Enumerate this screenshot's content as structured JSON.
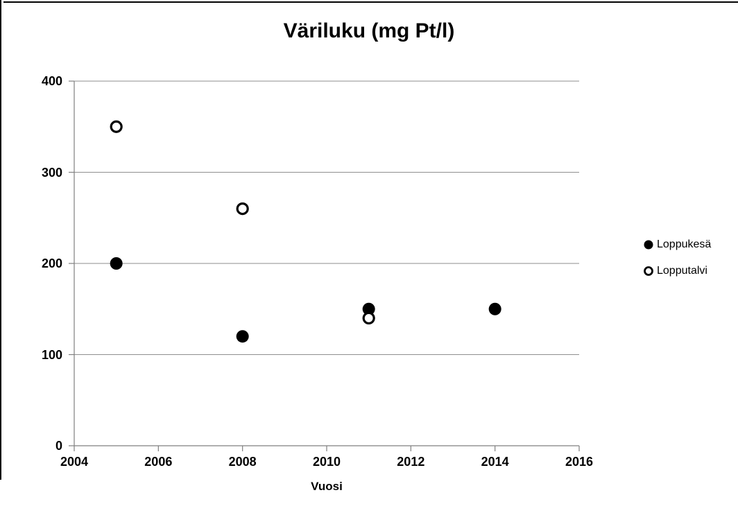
{
  "chart_data": {
    "type": "scatter",
    "title": "Väriluku  (mg Pt/l)",
    "xlabel": "Vuosi",
    "ylabel": "",
    "xlim": [
      2004,
      2016
    ],
    "ylim": [
      0,
      400
    ],
    "x_ticks": [
      "2004",
      "2006",
      "2008",
      "2010",
      "2012",
      "2014",
      "2016"
    ],
    "y_ticks": [
      "0",
      "100",
      "200",
      "300",
      "400"
    ],
    "grid": true,
    "legend_position": "right",
    "series": [
      {
        "name": "Loppukesä",
        "marker": "filled-circle",
        "points": [
          {
            "x": 2005,
            "y": 200
          },
          {
            "x": 2008,
            "y": 120
          },
          {
            "x": 2011,
            "y": 150
          },
          {
            "x": 2014,
            "y": 150
          }
        ]
      },
      {
        "name": "Lopputalvi",
        "marker": "open-circle",
        "points": [
          {
            "x": 2005,
            "y": 350
          },
          {
            "x": 2008,
            "y": 260
          },
          {
            "x": 2011,
            "y": 140
          }
        ]
      }
    ],
    "colors": {
      "marker": "#000000",
      "gridline": "#8e8e8e",
      "axis": "#7f7f7f",
      "text": "#000000",
      "background": "#ffffff",
      "page_border": "#000000"
    }
  }
}
